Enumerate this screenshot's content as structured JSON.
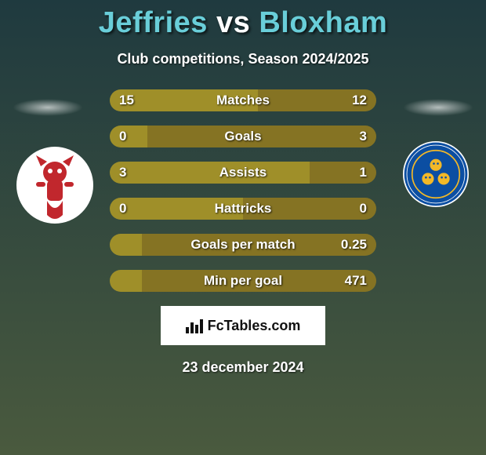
{
  "background": {
    "top_color": "#1f3a3f",
    "bottom_color": "#4a5a3e"
  },
  "title": {
    "name1": "Jeffries",
    "vs": "vs",
    "name2": "Bloxham",
    "name_color": "#69ced9",
    "vs_color": "#ffffff"
  },
  "subtitle": "Club competitions, Season 2024/2025",
  "crest_left": {
    "bg": "#ffffff",
    "accent": "#c1272d",
    "name": "lincoln-city-crest"
  },
  "crest_right": {
    "bg": "#0b4ea2",
    "accent": "#f2b828",
    "ring": "#ffffff",
    "name": "shrewsbury-town-crest"
  },
  "bars": {
    "left_color": "#9f8f29",
    "right_color": "#857323",
    "text_color": "#ffffff",
    "rows": [
      {
        "label": "Matches",
        "left": "15",
        "right": "12",
        "left_pct": 55.6,
        "right_pct": 44.4
      },
      {
        "label": "Goals",
        "left": "0",
        "right": "3",
        "left_pct": 14.0,
        "right_pct": 86.0
      },
      {
        "label": "Assists",
        "left": "3",
        "right": "1",
        "left_pct": 75.0,
        "right_pct": 25.0
      },
      {
        "label": "Hattricks",
        "left": "0",
        "right": "0",
        "left_pct": 50.0,
        "right_pct": 50.0
      },
      {
        "label": "Goals per match",
        "left": "",
        "right": "0.25",
        "left_pct": 12.0,
        "right_pct": 88.0
      },
      {
        "label": "Min per goal",
        "left": "",
        "right": "471",
        "left_pct": 12.0,
        "right_pct": 88.0
      }
    ]
  },
  "badge": {
    "prefix_icon": "bar-chart-icon",
    "text_bold": "FcTables",
    "text_rest": ".com"
  },
  "date": "23 december 2024"
}
